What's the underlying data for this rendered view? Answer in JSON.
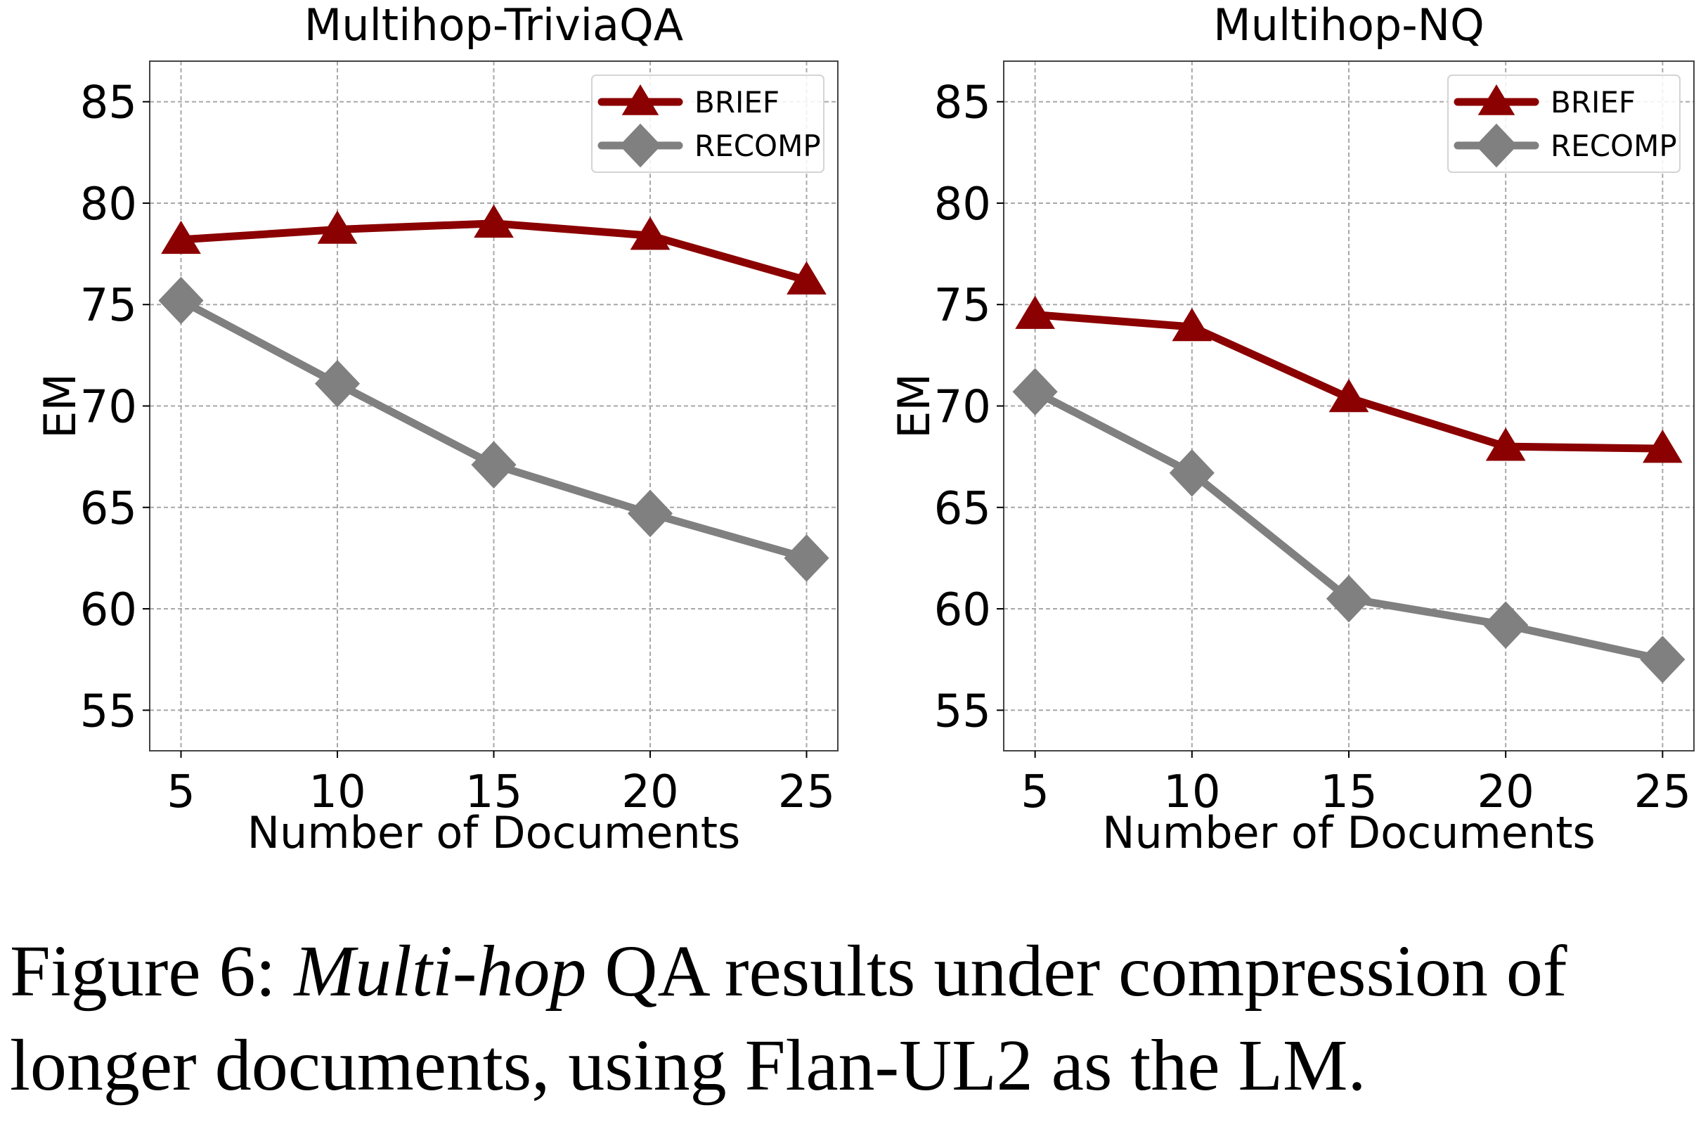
{
  "chart_data": [
    {
      "type": "line",
      "title": "Multihop-TriviaQA",
      "xlabel": "Number of Documents",
      "ylabel": "EM",
      "x": [
        5,
        10,
        15,
        20,
        25
      ],
      "xticks": [
        "5",
        "10",
        "15",
        "20",
        "25"
      ],
      "yticks": [
        "55",
        "60",
        "65",
        "70",
        "75",
        "80",
        "85"
      ],
      "xlim": [
        4,
        26
      ],
      "ylim": [
        53,
        87
      ],
      "grid": true,
      "legend": "top-right",
      "series": [
        {
          "name": "BRIEF",
          "values": [
            78.2,
            78.7,
            79.0,
            78.4,
            76.2
          ],
          "color": "#8b0000",
          "marker": "triangle"
        },
        {
          "name": "RECOMP",
          "values": [
            75.2,
            71.1,
            67.1,
            64.7,
            62.5
          ],
          "color": "#808080",
          "marker": "diamond"
        }
      ]
    },
    {
      "type": "line",
      "title": "Multihop-NQ",
      "xlabel": "Number of Documents",
      "ylabel": "EM",
      "x": [
        5,
        10,
        15,
        20,
        25
      ],
      "xticks": [
        "5",
        "10",
        "15",
        "20",
        "25"
      ],
      "yticks": [
        "55",
        "60",
        "65",
        "70",
        "75",
        "80",
        "85"
      ],
      "xlim": [
        4,
        26
      ],
      "ylim": [
        53,
        87
      ],
      "grid": true,
      "legend": "top-right",
      "series": [
        {
          "name": "BRIEF",
          "values": [
            74.5,
            73.9,
            70.4,
            68.0,
            67.9
          ],
          "color": "#8b0000",
          "marker": "triangle"
        },
        {
          "name": "RECOMP",
          "values": [
            70.7,
            66.7,
            60.5,
            59.2,
            57.5
          ],
          "color": "#808080",
          "marker": "diamond"
        }
      ]
    }
  ],
  "caption": {
    "prefix": "Figure 6: ",
    "emphasis": "Multi-hop",
    "rest": " QA results under compression of",
    "line2": "longer documents, using Flan-UL2 as the LM."
  }
}
